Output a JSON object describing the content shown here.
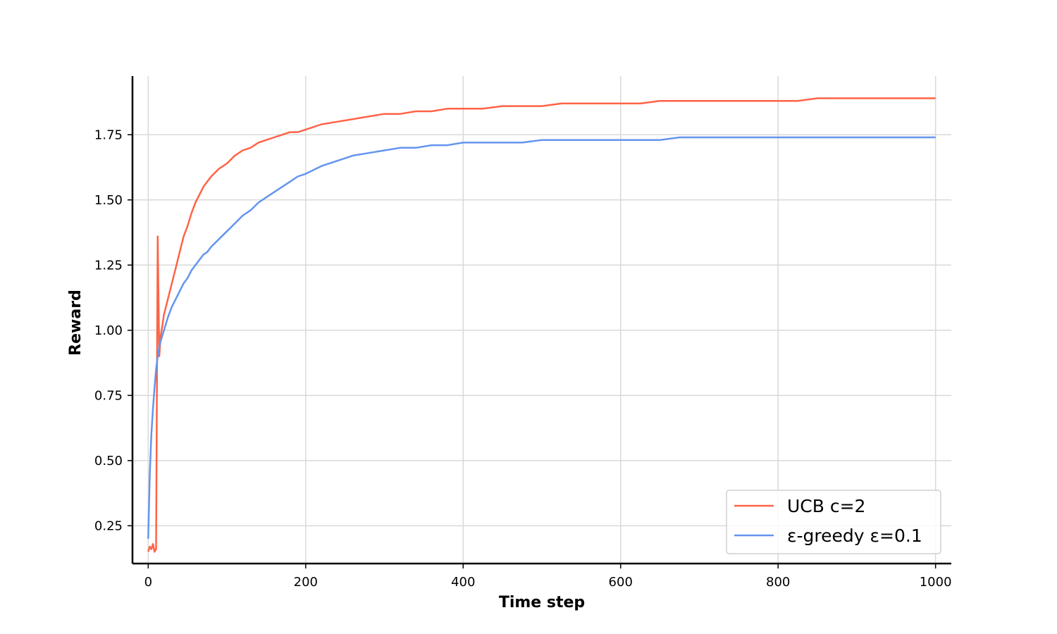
{
  "chart_data": {
    "type": "line",
    "title": "",
    "xlabel": "Time step",
    "ylabel": "Reward",
    "xlim": [
      -20,
      1020
    ],
    "ylim": [
      0.105,
      1.975
    ],
    "xticks": [
      0,
      200,
      400,
      600,
      800,
      1000
    ],
    "xtick_labels": [
      "0",
      "200",
      "400",
      "600",
      "800",
      "1000"
    ],
    "yticks": [
      0.25,
      0.5,
      0.75,
      1.0,
      1.25,
      1.5,
      1.75
    ],
    "ytick_labels": [
      "0.25",
      "0.50",
      "0.75",
      "1.00",
      "1.25",
      "1.50",
      "1.75"
    ],
    "grid": true,
    "legend_position": "lower-right",
    "series": [
      {
        "name": "UCB c=2",
        "color": "#ff6347",
        "x": [
          0,
          2,
          4,
          6,
          8,
          10,
          12,
          14,
          16,
          18,
          20,
          25,
          30,
          35,
          40,
          45,
          50,
          55,
          60,
          65,
          70,
          75,
          80,
          90,
          100,
          110,
          120,
          130,
          140,
          150,
          160,
          170,
          180,
          190,
          200,
          220,
          240,
          260,
          280,
          300,
          320,
          340,
          360,
          380,
          400,
          425,
          450,
          475,
          500,
          525,
          550,
          575,
          600,
          625,
          650,
          675,
          700,
          725,
          750,
          775,
          800,
          825,
          850,
          875,
          900,
          925,
          950,
          975,
          1000
        ],
        "y": [
          0.15,
          0.17,
          0.16,
          0.18,
          0.15,
          0.16,
          1.36,
          0.9,
          0.98,
          1.02,
          1.06,
          1.12,
          1.18,
          1.24,
          1.3,
          1.36,
          1.4,
          1.45,
          1.49,
          1.52,
          1.55,
          1.57,
          1.59,
          1.62,
          1.64,
          1.67,
          1.69,
          1.7,
          1.72,
          1.73,
          1.74,
          1.75,
          1.76,
          1.76,
          1.77,
          1.79,
          1.8,
          1.81,
          1.82,
          1.83,
          1.83,
          1.84,
          1.84,
          1.85,
          1.85,
          1.85,
          1.86,
          1.86,
          1.86,
          1.87,
          1.87,
          1.87,
          1.87,
          1.87,
          1.88,
          1.88,
          1.88,
          1.88,
          1.88,
          1.88,
          1.88,
          1.88,
          1.89,
          1.89,
          1.89,
          1.89,
          1.89,
          1.89,
          1.89
        ]
      },
      {
        "name": "ε-greedy ε=0.1",
        "color": "#6495ed",
        "x": [
          0,
          2,
          4,
          6,
          8,
          10,
          12,
          15,
          20,
          25,
          30,
          35,
          40,
          45,
          50,
          55,
          60,
          65,
          70,
          75,
          80,
          90,
          100,
          110,
          120,
          130,
          140,
          150,
          160,
          170,
          180,
          190,
          200,
          220,
          240,
          260,
          280,
          300,
          320,
          340,
          360,
          380,
          400,
          425,
          450,
          475,
          500,
          525,
          550,
          575,
          600,
          625,
          650,
          675,
          700,
          725,
          750,
          775,
          800,
          825,
          850,
          875,
          900,
          925,
          950,
          975,
          1000
        ],
        "y": [
          0.2,
          0.45,
          0.6,
          0.7,
          0.78,
          0.85,
          0.9,
          0.95,
          1.0,
          1.05,
          1.09,
          1.12,
          1.15,
          1.18,
          1.2,
          1.23,
          1.25,
          1.27,
          1.29,
          1.3,
          1.32,
          1.35,
          1.38,
          1.41,
          1.44,
          1.46,
          1.49,
          1.51,
          1.53,
          1.55,
          1.57,
          1.59,
          1.6,
          1.63,
          1.65,
          1.67,
          1.68,
          1.69,
          1.7,
          1.7,
          1.71,
          1.71,
          1.72,
          1.72,
          1.72,
          1.72,
          1.73,
          1.73,
          1.73,
          1.73,
          1.73,
          1.73,
          1.73,
          1.74,
          1.74,
          1.74,
          1.74,
          1.74,
          1.74,
          1.74,
          1.74,
          1.74,
          1.74,
          1.74,
          1.74,
          1.74,
          1.74
        ]
      }
    ]
  }
}
